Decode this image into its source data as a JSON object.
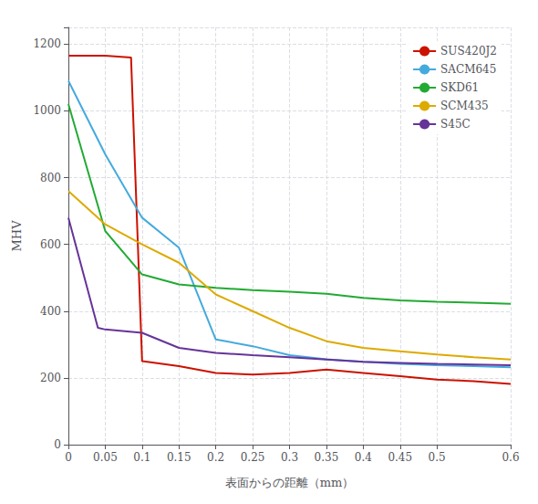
{
  "chart_data": {
    "type": "line",
    "xlabel": "表面からの距離（mm）",
    "ylabel": "MHV",
    "xlim": [
      0,
      0.6
    ],
    "ylim": [
      0,
      1250
    ],
    "xticks": [
      0,
      0.05,
      0.1,
      0.15,
      0.2,
      0.25,
      0.3,
      0.35,
      0.4,
      0.45,
      0.5,
      0.6
    ],
    "yticks": [
      0,
      200,
      400,
      600,
      800,
      1000,
      1200
    ],
    "grid": true,
    "legend": "upper right",
    "series": [
      {
        "name": "SUS420J2",
        "color": "#cc1100",
        "x": [
          0,
          0.05,
          0.085,
          0.1,
          0.15,
          0.2,
          0.25,
          0.3,
          0.35,
          0.4,
          0.45,
          0.5,
          0.55,
          0.6
        ],
        "values": [
          1165,
          1165,
          1160,
          250,
          235,
          215,
          210,
          215,
          225,
          215,
          205,
          195,
          190,
          182
        ]
      },
      {
        "name": "SACM645",
        "color": "#44aadd",
        "x": [
          0,
          0.05,
          0.1,
          0.15,
          0.2,
          0.25,
          0.3,
          0.35,
          0.4,
          0.45,
          0.5,
          0.55,
          0.6
        ],
        "values": [
          1090,
          870,
          680,
          590,
          315,
          295,
          268,
          256,
          248,
          242,
          238,
          235,
          232
        ]
      },
      {
        "name": "SKD61",
        "color": "#22aa33",
        "x": [
          0,
          0.05,
          0.1,
          0.15,
          0.2,
          0.25,
          0.3,
          0.35,
          0.4,
          0.45,
          0.5,
          0.55,
          0.6
        ],
        "values": [
          1020,
          640,
          510,
          480,
          470,
          463,
          458,
          452,
          440,
          432,
          428,
          425,
          422
        ]
      },
      {
        "name": "SCM435",
        "color": "#ddaa00",
        "x": [
          0,
          0.05,
          0.1,
          0.15,
          0.2,
          0.25,
          0.3,
          0.35,
          0.4,
          0.45,
          0.5,
          0.55,
          0.6
        ],
        "values": [
          760,
          660,
          600,
          545,
          450,
          400,
          350,
          310,
          290,
          280,
          270,
          262,
          255
        ]
      },
      {
        "name": "S45C",
        "color": "#663399",
        "x": [
          0,
          0.04,
          0.05,
          0.1,
          0.15,
          0.2,
          0.25,
          0.3,
          0.35,
          0.4,
          0.45,
          0.5,
          0.55,
          0.6
        ],
        "values": [
          680,
          350,
          345,
          335,
          290,
          275,
          268,
          262,
          255,
          248,
          245,
          242,
          240,
          238
        ]
      }
    ]
  }
}
